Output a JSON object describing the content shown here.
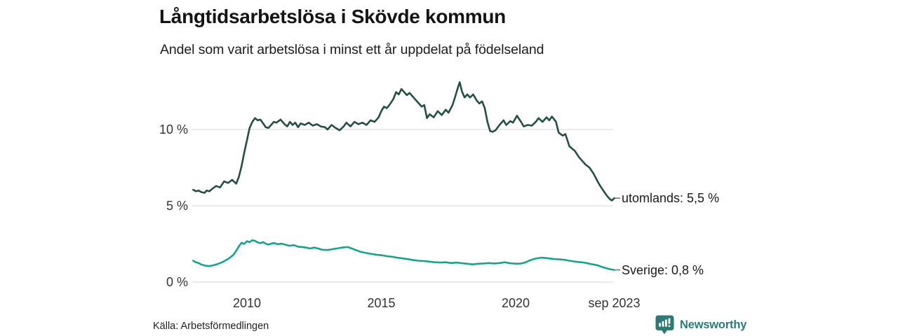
{
  "header": {
    "title": "Långtidsarbetslösa i Skövde kommun",
    "subtitle": "Andel som varit arbetslösa i minst ett år uppdelat på födelseland"
  },
  "footer": {
    "source": "Källa: Arbetsförmedlingen",
    "brand": "Newsworthy"
  },
  "colors": {
    "utomlands_line": "#24503F",
    "sverige_line": "#17A38C",
    "gridline": "#E2E2E2",
    "connector": "#777777",
    "brand_teal": "#2D7A75",
    "tick_text": "#333333"
  },
  "chart_data": {
    "type": "line",
    "title": "Långtidsarbetslösa i Skövde kommun",
    "subtitle": "Andel som varit arbetslösa i minst ett år uppdelat på födelseland",
    "unit": "percent",
    "grid": true,
    "legend_position": "end-of-line-labels",
    "x_domain": [
      2008.0,
      2023.75
    ],
    "ylim": [
      0,
      13.5
    ],
    "y_ticks": [
      {
        "value": 0,
        "label": "0 %"
      },
      {
        "value": 5,
        "label": "5 %"
      },
      {
        "value": 10,
        "label": "10 %"
      }
    ],
    "x_ticks": [
      {
        "value": 2010,
        "label": "2010"
      },
      {
        "value": 2015,
        "label": "2015"
      },
      {
        "value": 2020,
        "label": "2020"
      },
      {
        "value": 2023.67,
        "label": "sep 2023"
      }
    ],
    "series": [
      {
        "name": "utomlands",
        "end_label": "utomlands: 5,5 %",
        "end_value": 5.5,
        "color": "#24503F",
        "points": [
          [
            2008.0,
            6.05
          ],
          [
            2008.1,
            5.95
          ],
          [
            2008.2,
            6.0
          ],
          [
            2008.3,
            5.9
          ],
          [
            2008.42,
            5.85
          ],
          [
            2008.5,
            6.0
          ],
          [
            2008.6,
            5.95
          ],
          [
            2008.7,
            6.1
          ],
          [
            2008.85,
            6.3
          ],
          [
            2009.0,
            6.2
          ],
          [
            2009.15,
            6.6
          ],
          [
            2009.3,
            6.5
          ],
          [
            2009.45,
            6.7
          ],
          [
            2009.6,
            6.45
          ],
          [
            2009.7,
            6.9
          ],
          [
            2009.8,
            7.6
          ],
          [
            2009.9,
            8.5
          ],
          [
            2010.0,
            9.3
          ],
          [
            2010.1,
            10.1
          ],
          [
            2010.2,
            10.5
          ],
          [
            2010.3,
            10.75
          ],
          [
            2010.4,
            10.6
          ],
          [
            2010.5,
            10.65
          ],
          [
            2010.6,
            10.4
          ],
          [
            2010.7,
            10.15
          ],
          [
            2010.8,
            10.1
          ],
          [
            2010.9,
            10.3
          ],
          [
            2011.0,
            10.5
          ],
          [
            2011.1,
            10.45
          ],
          [
            2011.25,
            10.65
          ],
          [
            2011.4,
            10.35
          ],
          [
            2011.5,
            10.2
          ],
          [
            2011.6,
            10.5
          ],
          [
            2011.7,
            10.3
          ],
          [
            2011.8,
            10.45
          ],
          [
            2011.9,
            10.15
          ],
          [
            2012.0,
            10.4
          ],
          [
            2012.15,
            10.3
          ],
          [
            2012.3,
            10.45
          ],
          [
            2012.45,
            10.25
          ],
          [
            2012.6,
            10.35
          ],
          [
            2012.75,
            10.2
          ],
          [
            2012.9,
            10.15
          ],
          [
            2013.0,
            10.0
          ],
          [
            2013.15,
            10.3
          ],
          [
            2013.3,
            10.1
          ],
          [
            2013.45,
            9.95
          ],
          [
            2013.6,
            10.2
          ],
          [
            2013.7,
            10.45
          ],
          [
            2013.85,
            10.2
          ],
          [
            2014.0,
            10.5
          ],
          [
            2014.15,
            10.35
          ],
          [
            2014.3,
            10.45
          ],
          [
            2014.45,
            10.3
          ],
          [
            2014.6,
            10.6
          ],
          [
            2014.75,
            10.5
          ],
          [
            2014.9,
            10.8
          ],
          [
            2015.0,
            11.2
          ],
          [
            2015.1,
            11.5
          ],
          [
            2015.2,
            11.4
          ],
          [
            2015.3,
            11.6
          ],
          [
            2015.45,
            12.0
          ],
          [
            2015.55,
            12.45
          ],
          [
            2015.65,
            12.3
          ],
          [
            2015.75,
            12.65
          ],
          [
            2015.85,
            12.45
          ],
          [
            2015.95,
            12.25
          ],
          [
            2016.05,
            12.4
          ],
          [
            2016.15,
            12.2
          ],
          [
            2016.3,
            11.9
          ],
          [
            2016.4,
            11.7
          ],
          [
            2016.5,
            11.5
          ],
          [
            2016.6,
            11.6
          ],
          [
            2016.7,
            10.75
          ],
          [
            2016.8,
            11.0
          ],
          [
            2016.95,
            10.8
          ],
          [
            2017.1,
            11.2
          ],
          [
            2017.25,
            10.95
          ],
          [
            2017.4,
            11.3
          ],
          [
            2017.5,
            11.1
          ],
          [
            2017.65,
            11.6
          ],
          [
            2017.75,
            12.15
          ],
          [
            2017.85,
            12.75
          ],
          [
            2017.92,
            13.1
          ],
          [
            2018.0,
            12.5
          ],
          [
            2018.1,
            12.1
          ],
          [
            2018.2,
            12.3
          ],
          [
            2018.3,
            12.1
          ],
          [
            2018.42,
            12.3
          ],
          [
            2018.55,
            11.9
          ],
          [
            2018.65,
            11.7
          ],
          [
            2018.75,
            11.85
          ],
          [
            2018.85,
            11.4
          ],
          [
            2018.95,
            10.5
          ],
          [
            2019.05,
            9.9
          ],
          [
            2019.15,
            9.85
          ],
          [
            2019.25,
            9.95
          ],
          [
            2019.4,
            10.3
          ],
          [
            2019.55,
            10.6
          ],
          [
            2019.65,
            10.3
          ],
          [
            2019.8,
            10.55
          ],
          [
            2019.9,
            10.45
          ],
          [
            2020.05,
            10.9
          ],
          [
            2020.2,
            10.5
          ],
          [
            2020.3,
            10.2
          ],
          [
            2020.45,
            10.3
          ],
          [
            2020.6,
            10.25
          ],
          [
            2020.75,
            10.5
          ],
          [
            2020.85,
            10.75
          ],
          [
            2021.0,
            10.5
          ],
          [
            2021.15,
            10.8
          ],
          [
            2021.25,
            10.6
          ],
          [
            2021.35,
            10.85
          ],
          [
            2021.5,
            10.5
          ],
          [
            2021.6,
            9.8
          ],
          [
            2021.75,
            9.6
          ],
          [
            2021.85,
            9.7
          ],
          [
            2022.0,
            8.9
          ],
          [
            2022.2,
            8.6
          ],
          [
            2022.35,
            8.2
          ],
          [
            2022.5,
            7.9
          ],
          [
            2022.6,
            7.7
          ],
          [
            2022.75,
            7.5
          ],
          [
            2022.9,
            7.1
          ],
          [
            2023.05,
            6.6
          ],
          [
            2023.15,
            6.3
          ],
          [
            2023.3,
            5.9
          ],
          [
            2023.4,
            5.65
          ],
          [
            2023.5,
            5.45
          ],
          [
            2023.58,
            5.35
          ],
          [
            2023.67,
            5.5
          ]
        ]
      },
      {
        "name": "Sverige",
        "end_label": "Sverige: 0,8 %",
        "end_value": 0.8,
        "color": "#17A38C",
        "points": [
          [
            2008.0,
            1.4
          ],
          [
            2008.1,
            1.3
          ],
          [
            2008.2,
            1.25
          ],
          [
            2008.3,
            1.15
          ],
          [
            2008.45,
            1.08
          ],
          [
            2008.6,
            1.05
          ],
          [
            2008.75,
            1.1
          ],
          [
            2008.9,
            1.18
          ],
          [
            2009.0,
            1.25
          ],
          [
            2009.1,
            1.32
          ],
          [
            2009.2,
            1.42
          ],
          [
            2009.3,
            1.52
          ],
          [
            2009.4,
            1.65
          ],
          [
            2009.5,
            1.8
          ],
          [
            2009.6,
            2.05
          ],
          [
            2009.7,
            2.35
          ],
          [
            2009.8,
            2.58
          ],
          [
            2009.9,
            2.5
          ],
          [
            2010.0,
            2.68
          ],
          [
            2010.1,
            2.62
          ],
          [
            2010.2,
            2.75
          ],
          [
            2010.3,
            2.7
          ],
          [
            2010.4,
            2.6
          ],
          [
            2010.5,
            2.55
          ],
          [
            2010.6,
            2.62
          ],
          [
            2010.7,
            2.52
          ],
          [
            2010.8,
            2.46
          ],
          [
            2010.9,
            2.52
          ],
          [
            2011.0,
            2.56
          ],
          [
            2011.15,
            2.48
          ],
          [
            2011.3,
            2.52
          ],
          [
            2011.45,
            2.44
          ],
          [
            2011.6,
            2.38
          ],
          [
            2011.75,
            2.42
          ],
          [
            2011.9,
            2.32
          ],
          [
            2012.05,
            2.3
          ],
          [
            2012.2,
            2.26
          ],
          [
            2012.35,
            2.2
          ],
          [
            2012.5,
            2.26
          ],
          [
            2012.65,
            2.2
          ],
          [
            2012.8,
            2.12
          ],
          [
            2013.0,
            2.1
          ],
          [
            2013.2,
            2.16
          ],
          [
            2013.4,
            2.22
          ],
          [
            2013.6,
            2.28
          ],
          [
            2013.75,
            2.3
          ],
          [
            2013.9,
            2.2
          ],
          [
            2014.05,
            2.1
          ],
          [
            2014.2,
            2.0
          ],
          [
            2014.4,
            1.92
          ],
          [
            2014.6,
            1.86
          ],
          [
            2014.8,
            1.8
          ],
          [
            2015.0,
            1.76
          ],
          [
            2015.2,
            1.7
          ],
          [
            2015.4,
            1.66
          ],
          [
            2015.6,
            1.6
          ],
          [
            2015.8,
            1.55
          ],
          [
            2016.0,
            1.5
          ],
          [
            2016.2,
            1.44
          ],
          [
            2016.4,
            1.4
          ],
          [
            2016.6,
            1.38
          ],
          [
            2016.8,
            1.34
          ],
          [
            2017.0,
            1.3
          ],
          [
            2017.2,
            1.28
          ],
          [
            2017.4,
            1.3
          ],
          [
            2017.6,
            1.25
          ],
          [
            2017.8,
            1.28
          ],
          [
            2018.0,
            1.24
          ],
          [
            2018.2,
            1.2
          ],
          [
            2018.4,
            1.16
          ],
          [
            2018.6,
            1.2
          ],
          [
            2018.8,
            1.22
          ],
          [
            2019.0,
            1.25
          ],
          [
            2019.2,
            1.22
          ],
          [
            2019.4,
            1.25
          ],
          [
            2019.6,
            1.3
          ],
          [
            2019.75,
            1.25
          ],
          [
            2019.9,
            1.22
          ],
          [
            2020.05,
            1.2
          ],
          [
            2020.2,
            1.22
          ],
          [
            2020.35,
            1.28
          ],
          [
            2020.5,
            1.4
          ],
          [
            2020.65,
            1.5
          ],
          [
            2020.8,
            1.56
          ],
          [
            2020.95,
            1.6
          ],
          [
            2021.1,
            1.58
          ],
          [
            2021.25,
            1.55
          ],
          [
            2021.4,
            1.52
          ],
          [
            2021.55,
            1.5
          ],
          [
            2021.7,
            1.48
          ],
          [
            2021.85,
            1.45
          ],
          [
            2022.0,
            1.4
          ],
          [
            2022.15,
            1.36
          ],
          [
            2022.3,
            1.32
          ],
          [
            2022.45,
            1.3
          ],
          [
            2022.6,
            1.26
          ],
          [
            2022.75,
            1.2
          ],
          [
            2022.9,
            1.15
          ],
          [
            2023.05,
            1.1
          ],
          [
            2023.2,
            1.0
          ],
          [
            2023.35,
            0.92
          ],
          [
            2023.5,
            0.85
          ],
          [
            2023.67,
            0.8
          ]
        ]
      }
    ]
  }
}
